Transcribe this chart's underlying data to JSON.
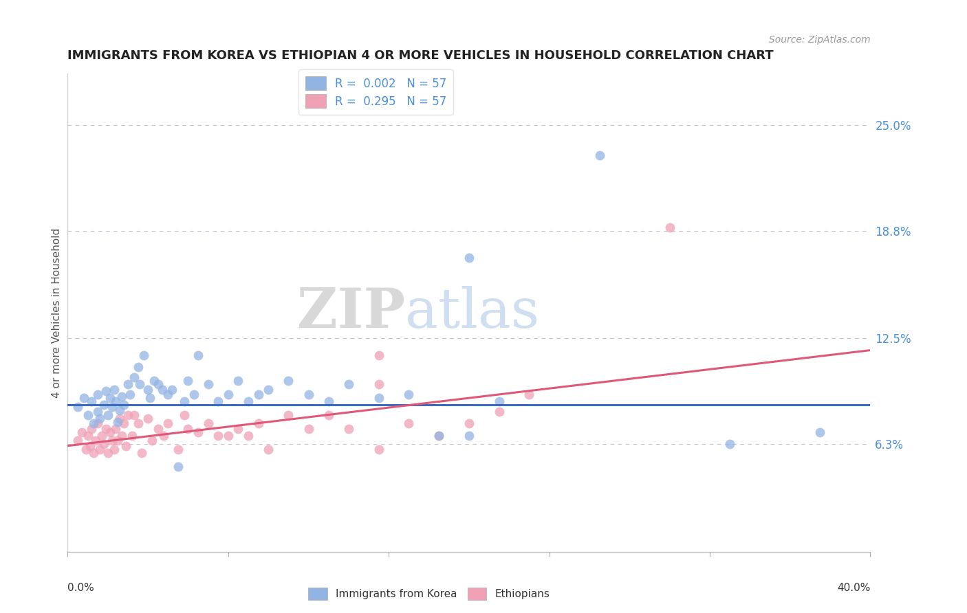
{
  "title": "IMMIGRANTS FROM KOREA VS ETHIOPIAN 4 OR MORE VEHICLES IN HOUSEHOLD CORRELATION CHART",
  "source": "Source: ZipAtlas.com",
  "ylabel": "4 or more Vehicles in Household",
  "ylim": [
    0,
    0.28
  ],
  "xlim": [
    0,
    0.4
  ],
  "yticks": [
    0.063,
    0.125,
    0.188,
    0.25
  ],
  "ytick_labels": [
    "6.3%",
    "12.5%",
    "18.8%",
    "25.0%"
  ],
  "korea_R": "0.002",
  "korea_N": "57",
  "ethiopia_R": "0.295",
  "ethiopia_N": "57",
  "korea_color": "#92b4e3",
  "ethiopia_color": "#f0a0b5",
  "korea_line_color": "#3a6bbf",
  "ethiopia_line_color": "#e05878",
  "korea_line_y0": 0.086,
  "korea_line_y1": 0.086,
  "ethiopia_line_y0": 0.062,
  "ethiopia_line_y1": 0.118,
  "watermark_zip": "ZIP",
  "watermark_atlas": "atlas",
  "korea_x": [
    0.005,
    0.008,
    0.01,
    0.012,
    0.013,
    0.015,
    0.015,
    0.016,
    0.018,
    0.019,
    0.02,
    0.021,
    0.022,
    0.023,
    0.024,
    0.025,
    0.026,
    0.027,
    0.028,
    0.03,
    0.031,
    0.033,
    0.035,
    0.036,
    0.038,
    0.04,
    0.041,
    0.043,
    0.045,
    0.047,
    0.05,
    0.052,
    0.055,
    0.058,
    0.06,
    0.063,
    0.065,
    0.07,
    0.075,
    0.08,
    0.085,
    0.09,
    0.095,
    0.1,
    0.11,
    0.12,
    0.13,
    0.14,
    0.155,
    0.17,
    0.185,
    0.2,
    0.215,
    0.265,
    0.2,
    0.375,
    0.33
  ],
  "korea_y": [
    0.085,
    0.09,
    0.08,
    0.088,
    0.075,
    0.082,
    0.092,
    0.078,
    0.086,
    0.094,
    0.08,
    0.09,
    0.085,
    0.095,
    0.088,
    0.076,
    0.083,
    0.091,
    0.086,
    0.098,
    0.092,
    0.102,
    0.108,
    0.098,
    0.115,
    0.095,
    0.09,
    0.1,
    0.098,
    0.095,
    0.092,
    0.095,
    0.05,
    0.088,
    0.1,
    0.092,
    0.115,
    0.098,
    0.088,
    0.092,
    0.1,
    0.088,
    0.092,
    0.095,
    0.1,
    0.092,
    0.088,
    0.098,
    0.09,
    0.092,
    0.068,
    0.068,
    0.088,
    0.232,
    0.172,
    0.07,
    0.063
  ],
  "ethiopia_x": [
    0.005,
    0.007,
    0.009,
    0.01,
    0.011,
    0.012,
    0.013,
    0.014,
    0.015,
    0.016,
    0.017,
    0.018,
    0.019,
    0.02,
    0.021,
    0.022,
    0.023,
    0.024,
    0.025,
    0.026,
    0.027,
    0.028,
    0.029,
    0.03,
    0.032,
    0.033,
    0.035,
    0.037,
    0.04,
    0.042,
    0.045,
    0.048,
    0.05,
    0.055,
    0.058,
    0.06,
    0.065,
    0.07,
    0.075,
    0.08,
    0.085,
    0.09,
    0.095,
    0.1,
    0.11,
    0.12,
    0.13,
    0.14,
    0.155,
    0.17,
    0.185,
    0.2,
    0.215,
    0.155,
    0.23,
    0.3,
    0.155
  ],
  "ethiopia_y": [
    0.065,
    0.07,
    0.06,
    0.068,
    0.062,
    0.072,
    0.058,
    0.065,
    0.075,
    0.06,
    0.068,
    0.063,
    0.072,
    0.058,
    0.07,
    0.065,
    0.06,
    0.072,
    0.065,
    0.078,
    0.068,
    0.075,
    0.062,
    0.08,
    0.068,
    0.08,
    0.075,
    0.058,
    0.078,
    0.065,
    0.072,
    0.068,
    0.075,
    0.06,
    0.08,
    0.072,
    0.07,
    0.075,
    0.068,
    0.068,
    0.072,
    0.068,
    0.075,
    0.06,
    0.08,
    0.072,
    0.08,
    0.072,
    0.098,
    0.075,
    0.068,
    0.075,
    0.082,
    0.115,
    0.092,
    0.19,
    0.06
  ]
}
